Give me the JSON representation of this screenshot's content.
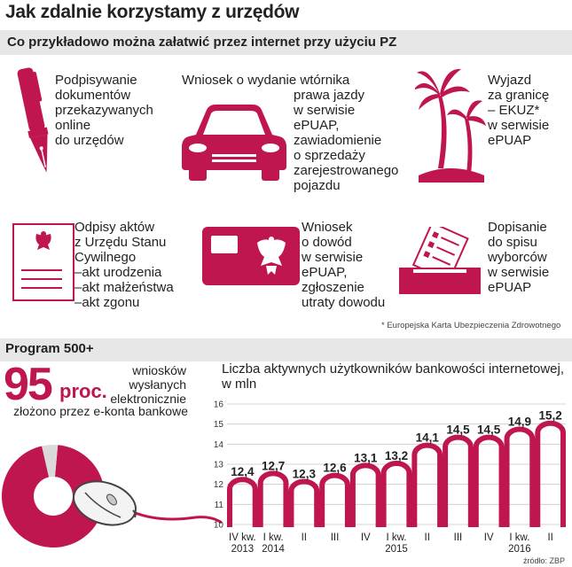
{
  "header": {
    "title": "Jak zdalnie korzystamy z urzędów",
    "subtitle": "Co przykładowo można załatwić przez internet przy użyciu PZ"
  },
  "services": [
    {
      "icon": "pen-icon",
      "lines": [
        "Podpisywanie",
        "dokumentów",
        "przekazywanych",
        "online",
        "do urzędów"
      ]
    },
    {
      "icon": "car-icon",
      "lines": [
        "Wniosek o wydanie wtórnika",
        "prawa jazdy",
        "w serwisie",
        "ePUAP,",
        "zawiadomienie",
        "o sprzedaży",
        "zarejestrowanego",
        "pojazdu"
      ]
    },
    {
      "icon": "palm-trees-icon",
      "lines": [
        "Wyjazd",
        "za granicę",
        "– EKUZ*",
        "w serwisie",
        "ePUAP"
      ]
    },
    {
      "icon": "document-eagle-icon",
      "lines": [
        "Odpisy aktów",
        "z Urzędu Stanu",
        "Cywilnego",
        "–akt urodzenia",
        "–akt małżeństwa",
        "–akt zgonu"
      ]
    },
    {
      "icon": "id-card-icon",
      "lines": [
        "Wniosek",
        "o dowód",
        "w serwisie",
        "ePUAP,",
        "zgłoszenie",
        "utraty dowodu"
      ]
    },
    {
      "icon": "ballot-box-icon",
      "lines": [
        "Dopisanie",
        "do spisu",
        "wyborców",
        "w serwisie",
        "ePUAP"
      ]
    }
  ],
  "footnote": "* Europejska Karta Ubezpieczenia Zdrowotnego",
  "program": {
    "title": "Program 500+",
    "value": "95",
    "unit": "proc.",
    "label_lines": [
      "wniosków",
      "wysłanych",
      "elektronicznie"
    ],
    "label_line2": "złożono przez e-konta bankowe",
    "share": 95
  },
  "chart_data": {
    "type": "bar",
    "title": "Liczba aktywnych użytkowników bankowości internetowej, w mln",
    "categories": [
      "IV kw. 2013",
      "I kw. 2014",
      "II",
      "III",
      "IV",
      "I kw. 2015",
      "II",
      "III",
      "IV",
      "I kw. 2016",
      "II"
    ],
    "tick_top": [
      "IV kw.",
      "I kw.",
      "II",
      "III",
      "IV",
      "I kw.",
      "II",
      "III",
      "IV",
      "I kw.",
      "II"
    ],
    "tick_bottom": [
      "2013",
      "2014",
      "",
      "",
      "",
      "2015",
      "",
      "",
      "",
      "2016",
      ""
    ],
    "values": [
      12.4,
      12.7,
      12.3,
      12.6,
      13.1,
      13.2,
      14.1,
      14.5,
      14.5,
      14.9,
      15.2
    ],
    "value_labels": [
      "12,4",
      "12,7",
      "12,3",
      "12,6",
      "13,1",
      "13,2",
      "14,1",
      "14,5",
      "14,5",
      "14,9",
      "15,2"
    ],
    "ylim": [
      10,
      16
    ],
    "yticks": [
      10,
      11,
      12,
      13,
      14,
      15,
      16
    ],
    "grid": true,
    "color": "#c0164f"
  },
  "source": "źródło: ZBP",
  "colors": {
    "accent": "#c0164f",
    "light": "#e0e0e0"
  }
}
